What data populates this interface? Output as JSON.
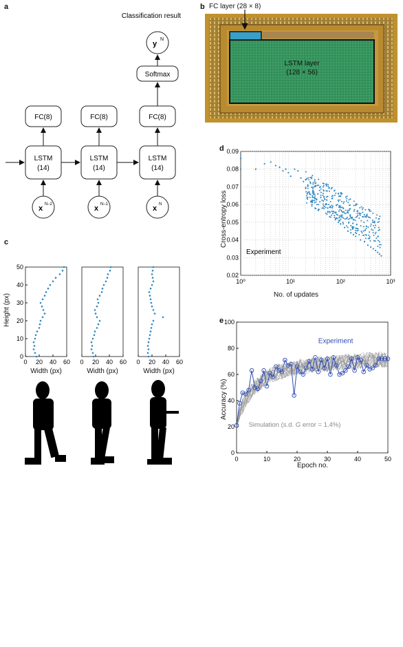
{
  "panels": {
    "a": {
      "label": "a",
      "result_caption": "Classification result",
      "output_node": "y",
      "output_sup": "N",
      "softmax": "Softmax",
      "fc_label": "FC(8)",
      "lstm_label": "LSTM",
      "lstm_units": "(14)",
      "inputs": [
        {
          "base": "x",
          "sup": "N–2"
        },
        {
          "base": "x",
          "sup": "N–1"
        },
        {
          "base": "x",
          "sup": "N"
        }
      ]
    },
    "b": {
      "label": "b",
      "fc_callout": "FC layer (28 × 8)",
      "lstm_title": "LSTM layer",
      "lstm_size": "(128 × 56)"
    },
    "c": {
      "label": "c",
      "ylabel": "Height (px)",
      "xlabel": "Width (px)",
      "yticks": [
        "0",
        "10",
        "20",
        "30",
        "40",
        "50"
      ],
      "xticks": [
        "0",
        "20",
        "40",
        "60"
      ]
    },
    "d": {
      "label": "d",
      "ylabel": "Cross-entropy loss",
      "xlabel": "No. of updates",
      "annotation": "Experiment",
      "yticks": [
        "0.02",
        "0.03",
        "0.04",
        "0.05",
        "0.06",
        "0.07",
        "0.08",
        "0.09"
      ],
      "xticks": [
        "10⁰",
        "10¹",
        "10²",
        "10³"
      ]
    },
    "e": {
      "label": "e",
      "ylabel": "Accuracy (%)",
      "xlabel": "Epoch no.",
      "experiment_label": "Experiment",
      "simulation_label_pre": "Simulation (s.d. ",
      "simulation_label_g": "G",
      "simulation_label_post": " error = 1.4%)",
      "yticks": [
        "0",
        "20",
        "40",
        "60",
        "80",
        "100"
      ],
      "xticks": [
        "0",
        "10",
        "20",
        "30",
        "40",
        "50"
      ]
    }
  },
  "colors": {
    "data_blue": "#2e86c1",
    "exp_blue": "#2f4bb3",
    "sim_gray": "#9a9a9a",
    "chip_green": "#2f8f5a",
    "fc_cyan": "#3a9fc7"
  },
  "chart_data": [
    {
      "type": "scatter",
      "panel": "c",
      "series": [
        {
          "values": [
            [
              16,
              0
            ],
            [
              14,
              2
            ],
            [
              12,
              4
            ],
            [
              13,
              6
            ],
            [
              12,
              8
            ],
            [
              14,
              10
            ],
            [
              15,
              12
            ],
            [
              17,
              14
            ],
            [
              20,
              16
            ],
            [
              21,
              18
            ],
            [
              22,
              20
            ],
            [
              25,
              22
            ],
            [
              28,
              24
            ],
            [
              26,
              26
            ],
            [
              24,
              28
            ],
            [
              22,
              30
            ],
            [
              25,
              32
            ],
            [
              28,
              34
            ],
            [
              30,
              36
            ],
            [
              33,
              38
            ],
            [
              36,
              40
            ],
            [
              40,
              42
            ],
            [
              44,
              44
            ],
            [
              50,
              46
            ],
            [
              54,
              48
            ],
            [
              56,
              50
            ]
          ]
        },
        {
          "values": [
            [
              17,
              0
            ],
            [
              16,
              2
            ],
            [
              14,
              4
            ],
            [
              15,
              6
            ],
            [
              14,
              8
            ],
            [
              16,
              10
            ],
            [
              18,
              12
            ],
            [
              19,
              14
            ],
            [
              22,
              16
            ],
            [
              24,
              18
            ],
            [
              26,
              20
            ],
            [
              22,
              22
            ],
            [
              20,
              24
            ],
            [
              19,
              26
            ],
            [
              22,
              28
            ],
            [
              24,
              30
            ],
            [
              23,
              32
            ],
            [
              26,
              34
            ],
            [
              29,
              36
            ],
            [
              30,
              38
            ],
            [
              32,
              40
            ],
            [
              35,
              42
            ],
            [
              37,
              44
            ],
            [
              38,
              46
            ],
            [
              41,
              48
            ],
            [
              42,
              50
            ]
          ]
        },
        {
          "values": [
            [
              15,
              0
            ],
            [
              14,
              2
            ],
            [
              15,
              4
            ],
            [
              14,
              6
            ],
            [
              15,
              8
            ],
            [
              16,
              10
            ],
            [
              17,
              12
            ],
            [
              18,
              14
            ],
            [
              19,
              16
            ],
            [
              20,
              18
            ],
            [
              22,
              20
            ],
            [
              36,
              22
            ],
            [
              24,
              24
            ],
            [
              22,
              26
            ],
            [
              20,
              28
            ],
            [
              19,
              30
            ],
            [
              18,
              32
            ],
            [
              17,
              34
            ],
            [
              16,
              36
            ],
            [
              18,
              38
            ],
            [
              20,
              40
            ],
            [
              22,
              42
            ],
            [
              21,
              44
            ],
            [
              20,
              46
            ],
            [
              21,
              48
            ],
            [
              22,
              50
            ]
          ]
        }
      ],
      "xlim": [
        0,
        60
      ],
      "ylim": [
        0,
        50
      ]
    },
    {
      "type": "scatter",
      "panel": "d",
      "xscale": "log",
      "xlim": [
        1,
        1000
      ],
      "ylim": [
        0.02,
        0.09
      ],
      "values": [
        [
          1,
          0.086
        ],
        [
          1,
          0.08
        ],
        [
          2,
          0.08
        ],
        [
          3,
          0.083
        ],
        [
          4,
          0.084
        ],
        [
          5,
          0.082
        ],
        [
          6,
          0.081
        ],
        [
          7,
          0.079
        ],
        [
          8,
          0.08
        ],
        [
          9,
          0.078
        ],
        [
          10,
          0.076
        ],
        [
          12,
          0.08
        ],
        [
          14,
          0.079
        ],
        [
          16,
          0.075
        ],
        [
          18,
          0.073
        ],
        [
          20,
          0.074
        ],
        [
          22,
          0.071
        ],
        [
          25,
          0.072
        ],
        [
          28,
          0.068
        ],
        [
          30,
          0.07
        ],
        [
          35,
          0.066
        ],
        [
          40,
          0.064
        ],
        [
          45,
          0.062
        ],
        [
          50,
          0.06
        ],
        [
          55,
          0.058
        ],
        [
          60,
          0.056
        ],
        [
          70,
          0.055
        ],
        [
          80,
          0.052
        ],
        [
          90,
          0.05
        ],
        [
          100,
          0.049
        ],
        [
          120,
          0.047
        ],
        [
          140,
          0.045
        ],
        [
          160,
          0.044
        ],
        [
          180,
          0.043
        ],
        [
          200,
          0.042
        ],
        [
          250,
          0.04
        ],
        [
          300,
          0.039
        ],
        [
          350,
          0.037
        ],
        [
          400,
          0.036
        ],
        [
          450,
          0.035
        ],
        [
          500,
          0.034
        ],
        [
          550,
          0.033
        ],
        [
          600,
          0.032
        ],
        [
          650,
          0.031
        ]
      ]
    },
    {
      "type": "line",
      "panel": "e",
      "xlim": [
        0,
        50
      ],
      "ylim": [
        0,
        100
      ],
      "series": [
        {
          "name": "Experiment",
          "x": [
            0,
            1,
            2,
            3,
            4,
            5,
            6,
            7,
            8,
            9,
            10,
            11,
            12,
            13,
            14,
            15,
            16,
            17,
            18,
            19,
            20,
            21,
            22,
            23,
            24,
            25,
            26,
            27,
            28,
            29,
            30,
            31,
            32,
            33,
            34,
            35,
            36,
            37,
            38,
            39,
            40,
            41,
            42,
            43,
            44,
            45,
            46,
            47,
            48,
            49,
            50
          ],
          "values": [
            21,
            38,
            46,
            45,
            48,
            63,
            50,
            49,
            55,
            63,
            51,
            61,
            58,
            66,
            63,
            62,
            71,
            67,
            68,
            44,
            66,
            62,
            60,
            65,
            70,
            64,
            73,
            62,
            71,
            65,
            72,
            60,
            73,
            67,
            60,
            61,
            63,
            66,
            72,
            63,
            73,
            71,
            62,
            67,
            64,
            65,
            67,
            72,
            72,
            72,
            72
          ]
        },
        {
          "name": "Simulation",
          "mean": [
            21,
            30,
            36,
            40,
            44,
            47,
            50,
            52,
            54,
            56,
            57,
            59,
            60,
            61,
            62,
            62,
            63,
            64,
            64,
            65,
            65,
            66,
            66,
            66,
            67,
            67,
            67,
            68,
            68,
            68,
            68,
            69,
            69,
            69,
            69,
            69,
            70,
            70,
            70,
            70,
            70,
            70,
            71,
            71,
            71,
            71,
            71,
            71,
            71,
            71,
            71
          ],
          "sd": 1.4
        }
      ]
    }
  ]
}
